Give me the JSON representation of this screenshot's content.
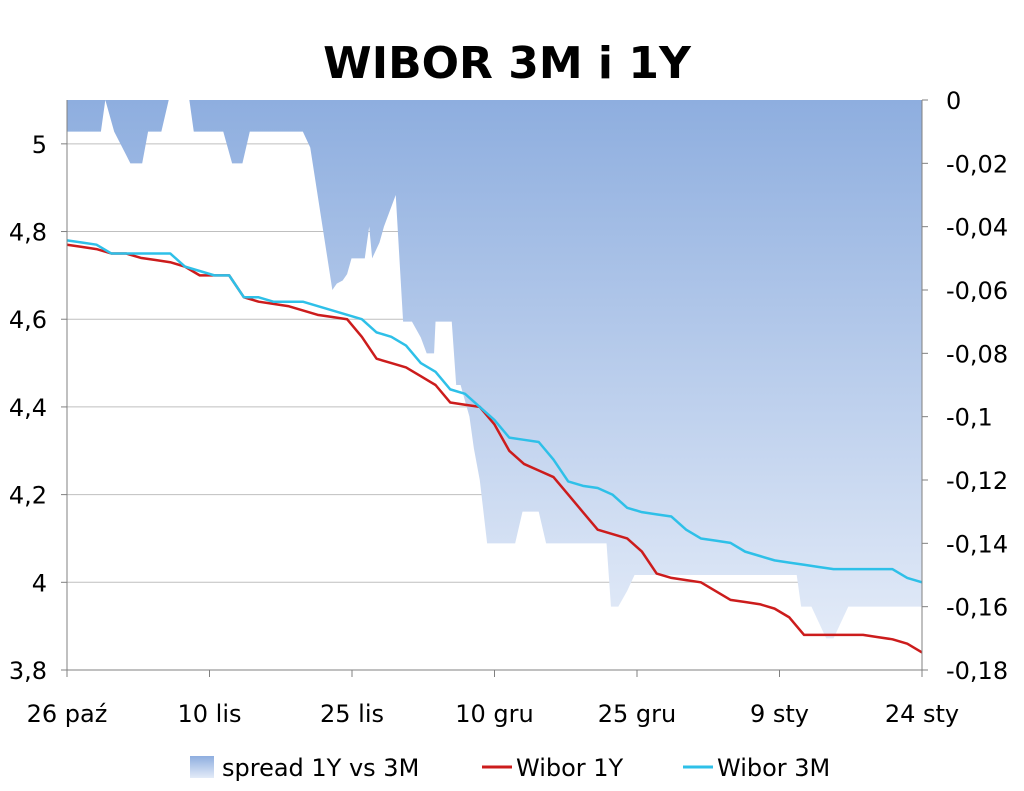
{
  "chart_data": {
    "type": "line",
    "title": "WIBOR 3M i 1Y",
    "x_tick_labels": [
      "26 paź",
      "10 lis",
      "25 lis",
      "10 gru",
      "25 gru",
      "9 sty",
      "24 sty"
    ],
    "y_left": {
      "ticks": [
        "3,8",
        "4",
        "4,2",
        "4,4",
        "4,6",
        "4,8",
        "5"
      ],
      "range": [
        3.8,
        5.1
      ]
    },
    "y_right": {
      "ticks": [
        "-0,18",
        "-0,16",
        "-0,14",
        "-0,12",
        "-0,1",
        "-0,08",
        "-0,06",
        "-0,04",
        "-0,02",
        "0"
      ],
      "range": [
        -0.18,
        0.0
      ]
    },
    "grid": true,
    "legend_position": "bottom",
    "colors": {
      "spread_top": "#8eaedf",
      "spread_bottom": "#e3ebf8",
      "wibor_1y": "#cc1c1c",
      "wibor_3m": "#2ec0e8",
      "grid": "#bfbfbf",
      "axis": "#808080"
    },
    "series": [
      {
        "name": "spread 1Y vs 3M",
        "kind": "area",
        "axis": "right",
        "x": [
          0,
          0.5,
          2.3,
          2.6,
          3.2,
          4.3,
          5.1,
          5.5,
          5.7,
          6.4,
          6.9,
          7.5,
          8.3,
          8.6,
          8.7,
          9.5,
          10.6,
          11.2,
          11.5,
          11.9,
          12.4,
          13.0,
          14.3,
          14.6,
          15.0,
          16.0,
          16.5,
          17.0,
          18.0,
          18.3,
          18.7,
          19.0,
          19.3,
          20.2,
          20.5,
          20.7,
          21.2,
          21.5,
          22.3,
          22.8,
          23.4,
          24.0,
          24.4,
          24.9,
          25.0,
          25.3,
          25.6,
          25.8,
          26.1,
          26.4,
          26.7,
          27.0,
          27.3,
          27.6,
          28.0,
          28.5,
          29.0,
          29.7,
          30.4,
          30.9,
          31.4,
          32.0,
          32.5,
          32.8,
          33.3,
          34.0,
          35.0,
          35.7,
          36.6,
          36.9,
          37.4,
          38.0,
          38.5,
          39.0,
          39.3,
          40.0,
          40.4,
          40.8,
          41.2,
          41.6,
          42.0,
          42.4,
          43.0,
          43.5,
          44.0,
          44.4,
          44.8,
          45.1,
          45.8,
          46.4,
          46.7,
          47.0,
          48.0,
          48.3,
          48.8,
          49.5,
          49.8,
          50.5,
          51.0,
          51.5,
          52.0,
          53.0,
          54.2,
          55.0,
          55.5,
          55.8,
          56.0,
          56.4,
          57.4,
          58.0
        ],
        "y": [
          -0.01,
          -0.01,
          -0.01,
          0.0,
          -0.01,
          -0.02,
          -0.02,
          -0.01,
          -0.01,
          -0.01,
          0.0,
          0.0,
          0.0,
          -0.01,
          -0.01,
          -0.01,
          -0.01,
          -0.02,
          -0.02,
          -0.02,
          -0.01,
          -0.01,
          -0.01,
          -0.01,
          -0.01,
          -0.01,
          -0.015,
          -0.03,
          -0.06,
          -0.058,
          -0.057,
          -0.055,
          -0.05,
          -0.05,
          -0.04,
          -0.05,
          -0.045,
          -0.04,
          -0.03,
          -0.07,
          -0.07,
          -0.075,
          -0.08,
          -0.08,
          -0.07,
          -0.07,
          -0.07,
          -0.07,
          -0.07,
          -0.09,
          -0.09,
          -0.095,
          -0.1,
          -0.11,
          -0.12,
          -0.14,
          -0.14,
          -0.14,
          -0.14,
          -0.13,
          -0.13,
          -0.13,
          -0.14,
          -0.14,
          -0.14,
          -0.14,
          -0.14,
          -0.14,
          -0.14,
          -0.16,
          -0.16,
          -0.155,
          -0.15,
          -0.15,
          -0.15,
          -0.15,
          -0.15,
          -0.15,
          -0.15,
          -0.15,
          -0.15,
          -0.15,
          -0.15,
          -0.15,
          -0.15,
          -0.15,
          -0.15,
          -0.15,
          -0.15,
          -0.15,
          -0.15,
          -0.15,
          -0.15,
          -0.15,
          -0.15,
          -0.15,
          -0.16,
          -0.16,
          -0.165,
          -0.17,
          -0.17,
          -0.16,
          -0.16,
          -0.16,
          -0.16,
          -0.16,
          -0.16,
          -0.16,
          -0.16,
          -0.16
        ]
      },
      {
        "name": "Wibor 1Y",
        "kind": "line",
        "axis": "left",
        "x": [
          0,
          1,
          2,
          3,
          4,
          5,
          6,
          7,
          8,
          9,
          10,
          11,
          12,
          13,
          14,
          15,
          16,
          17,
          18,
          19,
          20,
          21,
          22,
          23,
          24,
          25,
          26,
          27,
          28,
          29,
          30,
          31,
          32,
          33,
          34,
          35,
          36,
          37,
          38,
          39,
          40,
          41,
          42,
          43,
          44,
          45,
          46,
          47,
          48,
          49,
          50,
          51,
          52,
          53,
          54,
          55,
          56,
          57,
          58
        ],
        "y": [
          4.77,
          4.765,
          4.76,
          4.75,
          4.75,
          4.74,
          4.735,
          4.73,
          4.72,
          4.7,
          4.7,
          4.7,
          4.65,
          4.64,
          4.635,
          4.63,
          4.62,
          4.61,
          4.605,
          4.6,
          4.56,
          4.51,
          4.5,
          4.49,
          4.47,
          4.45,
          4.41,
          4.405,
          4.4,
          4.36,
          4.3,
          4.27,
          4.255,
          4.24,
          4.2,
          4.16,
          4.12,
          4.11,
          4.1,
          4.07,
          4.02,
          4.01,
          4.005,
          4.0,
          3.98,
          3.96,
          3.955,
          3.95,
          3.94,
          3.92,
          3.88,
          3.88,
          3.88,
          3.88,
          3.88,
          3.875,
          3.87,
          3.86,
          3.84
        ]
      },
      {
        "name": "Wibor 3M",
        "kind": "line",
        "axis": "left",
        "x": [
          0,
          1,
          2,
          3,
          4,
          5,
          6,
          7,
          8,
          9,
          10,
          11,
          12,
          13,
          14,
          15,
          16,
          17,
          18,
          19,
          20,
          21,
          22,
          23,
          24,
          25,
          26,
          27,
          28,
          29,
          30,
          31,
          32,
          33,
          34,
          35,
          36,
          37,
          38,
          39,
          40,
          41,
          42,
          43,
          44,
          45,
          46,
          47,
          48,
          49,
          50,
          51,
          52,
          53,
          54,
          55,
          56,
          57,
          58
        ],
        "y": [
          4.78,
          4.775,
          4.77,
          4.75,
          4.75,
          4.75,
          4.75,
          4.75,
          4.72,
          4.71,
          4.7,
          4.7,
          4.65,
          4.65,
          4.64,
          4.64,
          4.64,
          4.63,
          4.62,
          4.61,
          4.6,
          4.57,
          4.56,
          4.54,
          4.5,
          4.48,
          4.44,
          4.43,
          4.4,
          4.37,
          4.33,
          4.325,
          4.32,
          4.28,
          4.23,
          4.22,
          4.215,
          4.2,
          4.17,
          4.16,
          4.155,
          4.15,
          4.12,
          4.1,
          4.095,
          4.09,
          4.07,
          4.06,
          4.05,
          4.045,
          4.04,
          4.035,
          4.03,
          4.03,
          4.03,
          4.03,
          4.03,
          4.01,
          4.0
        ]
      }
    ]
  }
}
